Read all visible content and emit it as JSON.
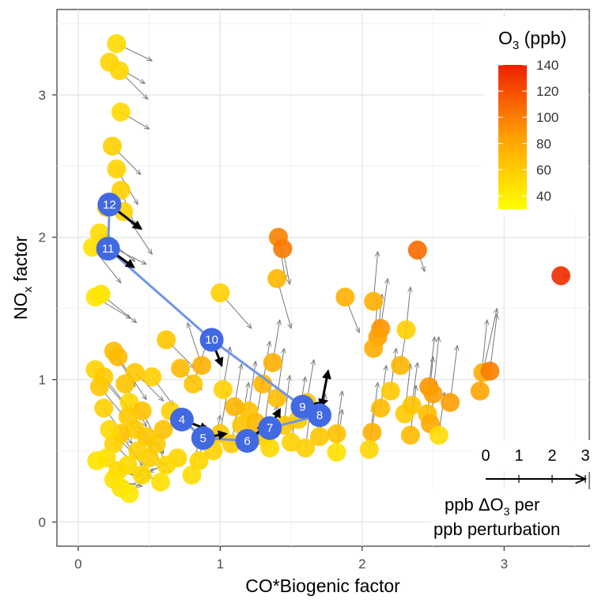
{
  "chart_data": {
    "type": "scatter",
    "xlabel": "CO*Biogenic factor",
    "ylabel": "NOx factor",
    "ylabel_main": "NO",
    "ylabel_sub": "x",
    "ylabel_tail": " factor",
    "xlim": [
      -0.15,
      3.6
    ],
    "ylim": [
      -0.17,
      3.6
    ],
    "x_ticks": [
      0,
      1,
      2,
      3
    ],
    "y_ticks": [
      0,
      1,
      2,
      3
    ],
    "x_tick_labels": [
      "0",
      "1",
      "2",
      "3"
    ],
    "y_tick_labels": [
      "0",
      "1",
      "2",
      "3"
    ],
    "grid": true,
    "legend": {
      "position": "top-right",
      "title": "O3 (ppb)",
      "title_main": "O",
      "title_sub": "3",
      "title_tail": " (ppb)",
      "range": [
        30,
        140
      ],
      "ticks": [
        140,
        120,
        100,
        80,
        60,
        40
      ],
      "tick_labels": [
        "140",
        "120",
        "100",
        "80",
        "60",
        "40"
      ],
      "colors": {
        "low": "#ffff00",
        "mid": "#ffa000",
        "high": "#f02000"
      }
    },
    "vector_scale": {
      "ticks": [
        "0",
        "1",
        "2",
        "3"
      ],
      "label_line1": "ppb ΔO3 per",
      "label_line1_a": "ppb  ΔO",
      "label_line1_sub": "3",
      "label_line1_b": " per",
      "label_line2": "ppb perturbation"
    },
    "marker_colors": {
      "path": "#4169e1",
      "path_line": "#6f95e6",
      "background_arrow": "#777777",
      "path_arrow": "#000000"
    },
    "points": [
      {
        "x": 0.27,
        "y": 3.36,
        "o3": 52,
        "dx": 0.25,
        "dy": -0.12
      },
      {
        "x": 0.22,
        "y": 3.23,
        "o3": 55,
        "dx": 0.25,
        "dy": -0.15
      },
      {
        "x": 0.29,
        "y": 3.17,
        "o3": 54,
        "dx": 0.2,
        "dy": -0.2
      },
      {
        "x": 0.3,
        "y": 2.88,
        "o3": 52,
        "dx": 0.2,
        "dy": -0.12
      },
      {
        "x": 0.24,
        "y": 2.64,
        "o3": 58,
        "dx": 0.2,
        "dy": -0.2
      },
      {
        "x": 0.27,
        "y": 2.48,
        "o3": 55,
        "dx": 0.15,
        "dy": -0.25
      },
      {
        "x": 0.3,
        "y": 2.33,
        "o3": 57,
        "dx": 0.1,
        "dy": -0.25
      },
      {
        "x": 0.2,
        "y": 2.21,
        "o3": 60,
        "dx": 0.25,
        "dy": -0.15
      },
      {
        "x": 0.32,
        "y": 2.18,
        "o3": 55,
        "dx": 0.2,
        "dy": -0.3
      },
      {
        "x": 0.15,
        "y": 2.03,
        "o3": 50,
        "dx": 0.25,
        "dy": -0.2
      },
      {
        "x": 0.18,
        "y": 1.96,
        "o3": 52,
        "dx": 0.3,
        "dy": -0.15
      },
      {
        "x": 0.1,
        "y": 1.93,
        "o3": 48,
        "dx": 0.2,
        "dy": -0.25
      },
      {
        "x": 0.16,
        "y": 1.6,
        "o3": 47,
        "dx": 0.25,
        "dy": -0.2
      },
      {
        "x": 0.12,
        "y": 1.58,
        "o3": 45,
        "dx": 0.25,
        "dy": -0.15
      },
      {
        "x": 1.41,
        "y": 2.0,
        "o3": 98,
        "dx": 0.05,
        "dy": -0.3
      },
      {
        "x": 1.44,
        "y": 1.92,
        "o3": 102,
        "dx": 0.05,
        "dy": -0.25
      },
      {
        "x": 1.4,
        "y": 1.71,
        "o3": 72,
        "dx": 0.1,
        "dy": -0.35
      },
      {
        "x": 1.0,
        "y": 1.61,
        "o3": 58,
        "dx": 0.22,
        "dy": -0.25
      },
      {
        "x": 1.88,
        "y": 1.58,
        "o3": 76,
        "dx": 0.1,
        "dy": -0.25
      },
      {
        "x": 2.39,
        "y": 1.91,
        "o3": 108,
        "dx": 0.05,
        "dy": -0.15
      },
      {
        "x": 3.4,
        "y": 1.73,
        "o3": 135,
        "dx": 0.05,
        "dy": 0.0
      },
      {
        "x": 2.08,
        "y": 1.55,
        "o3": 76,
        "dx": 0.03,
        "dy": 0.35
      },
      {
        "x": 2.13,
        "y": 1.36,
        "o3": 90,
        "dx": 0.05,
        "dy": 0.35
      },
      {
        "x": 2.11,
        "y": 1.3,
        "o3": 86,
        "dx": 0.03,
        "dy": 0.3
      },
      {
        "x": 2.31,
        "y": 1.35,
        "o3": 58,
        "dx": 0.03,
        "dy": 0.3
      },
      {
        "x": 2.08,
        "y": 1.22,
        "o3": 78,
        "dx": 0.03,
        "dy": 0.35
      },
      {
        "x": 2.27,
        "y": 1.1,
        "o3": 72,
        "dx": 0.05,
        "dy": 0.3
      },
      {
        "x": 2.85,
        "y": 1.05,
        "o3": 78,
        "dx": 0.1,
        "dy": 0.45
      },
      {
        "x": 2.9,
        "y": 1.06,
        "o3": 100,
        "dx": 0.05,
        "dy": 0.4
      },
      {
        "x": 2.83,
        "y": 0.92,
        "o3": 82,
        "dx": 0.05,
        "dy": 0.5
      },
      {
        "x": 2.47,
        "y": 0.95,
        "o3": 90,
        "dx": 0.04,
        "dy": 0.35
      },
      {
        "x": 2.5,
        "y": 0.9,
        "o3": 86,
        "dx": 0.04,
        "dy": 0.4
      },
      {
        "x": 2.62,
        "y": 0.84,
        "o3": 86,
        "dx": 0.05,
        "dy": 0.4
      },
      {
        "x": 2.46,
        "y": 0.76,
        "o3": 68,
        "dx": 0.04,
        "dy": 0.4
      },
      {
        "x": 2.3,
        "y": 0.76,
        "o3": 60,
        "dx": 0.04,
        "dy": 0.35
      },
      {
        "x": 2.35,
        "y": 0.82,
        "o3": 64,
        "dx": 0.04,
        "dy": 0.3
      },
      {
        "x": 2.48,
        "y": 0.69,
        "o3": 80,
        "dx": 0.04,
        "dy": 0.3
      },
      {
        "x": 2.34,
        "y": 0.61,
        "o3": 70,
        "dx": 0.04,
        "dy": 0.35
      },
      {
        "x": 2.54,
        "y": 0.61,
        "o3": 50,
        "dx": 0.04,
        "dy": 0.3
      },
      {
        "x": 2.07,
        "y": 0.63,
        "o3": 76,
        "dx": 0.04,
        "dy": 0.35
      },
      {
        "x": 2.05,
        "y": 0.51,
        "o3": 54,
        "dx": 0.03,
        "dy": 0.3
      },
      {
        "x": 2.13,
        "y": 0.8,
        "o3": 70,
        "dx": 0.04,
        "dy": 0.3
      },
      {
        "x": 2.2,
        "y": 0.92,
        "o3": 62,
        "dx": 0.04,
        "dy": 0.3
      },
      {
        "x": 1.82,
        "y": 0.62,
        "o3": 66,
        "dx": 0.04,
        "dy": 0.3
      },
      {
        "x": 1.82,
        "y": 0.49,
        "o3": 48,
        "dx": 0.04,
        "dy": 0.3
      },
      {
        "x": 1.61,
        "y": 0.84,
        "o3": 64,
        "dx": 0.05,
        "dy": 0.3
      },
      {
        "x": 1.37,
        "y": 1.12,
        "o3": 76,
        "dx": 0.05,
        "dy": 0.3
      },
      {
        "x": 1.3,
        "y": 0.97,
        "o3": 72,
        "dx": 0.05,
        "dy": 0.3
      },
      {
        "x": 1.4,
        "y": 0.87,
        "o3": 68,
        "dx": 0.05,
        "dy": 0.35
      },
      {
        "x": 1.45,
        "y": 0.68,
        "o3": 64,
        "dx": 0.04,
        "dy": 0.35
      },
      {
        "x": 1.5,
        "y": 0.56,
        "o3": 56,
        "dx": 0.05,
        "dy": 0.3
      },
      {
        "x": 1.6,
        "y": 0.52,
        "o3": 58,
        "dx": 0.04,
        "dy": 0.3
      },
      {
        "x": 1.7,
        "y": 0.6,
        "o3": 62,
        "dx": 0.04,
        "dy": 0.3
      },
      {
        "x": 1.3,
        "y": 0.6,
        "o3": 60,
        "dx": 0.05,
        "dy": 0.35
      },
      {
        "x": 1.2,
        "y": 0.78,
        "o3": 66,
        "dx": 0.05,
        "dy": 0.35
      },
      {
        "x": 1.1,
        "y": 0.81,
        "o3": 72,
        "dx": 0.05,
        "dy": 0.3
      },
      {
        "x": 1.02,
        "y": 0.93,
        "o3": 56,
        "dx": 0.05,
        "dy": 0.3
      },
      {
        "x": 0.87,
        "y": 1.1,
        "o3": 76,
        "dx": -0.1,
        "dy": 0.3
      },
      {
        "x": 0.81,
        "y": 0.97,
        "o3": 64,
        "dx": 0.1,
        "dy": 0.3
      },
      {
        "x": 0.72,
        "y": 1.08,
        "o3": 70,
        "dx": 0.15,
        "dy": -0.15
      },
      {
        "x": 0.62,
        "y": 1.28,
        "o3": 62,
        "dx": 0.2,
        "dy": -0.2
      },
      {
        "x": 0.52,
        "y": 1.02,
        "o3": 58,
        "dx": 0.15,
        "dy": -0.2
      },
      {
        "x": 0.4,
        "y": 1.05,
        "o3": 62,
        "dx": 0.2,
        "dy": -0.2
      },
      {
        "x": 0.25,
        "y": 1.2,
        "o3": 68,
        "dx": 0.15,
        "dy": -0.25
      },
      {
        "x": 0.28,
        "y": 1.16,
        "o3": 70,
        "dx": 0.2,
        "dy": -0.3
      },
      {
        "x": 0.12,
        "y": 1.07,
        "o3": 56,
        "dx": 0.25,
        "dy": -0.3
      },
      {
        "x": 0.18,
        "y": 1.02,
        "o3": 60,
        "dx": 0.2,
        "dy": -0.25
      },
      {
        "x": 0.15,
        "y": 0.95,
        "o3": 62,
        "dx": 0.25,
        "dy": -0.3
      },
      {
        "x": 0.33,
        "y": 0.97,
        "o3": 64,
        "dx": 0.15,
        "dy": -0.3
      },
      {
        "x": 0.18,
        "y": 0.8,
        "o3": 58,
        "dx": 0.2,
        "dy": -0.25
      },
      {
        "x": 0.36,
        "y": 0.84,
        "o3": 54,
        "dx": 0.15,
        "dy": -0.35
      },
      {
        "x": 0.45,
        "y": 0.78,
        "o3": 66,
        "dx": 0.15,
        "dy": -0.3
      },
      {
        "x": 0.4,
        "y": 0.65,
        "o3": 60,
        "dx": 0.2,
        "dy": -0.25
      },
      {
        "x": 0.3,
        "y": 0.62,
        "o3": 64,
        "dx": 0.2,
        "dy": -0.3
      },
      {
        "x": 0.25,
        "y": 0.55,
        "o3": 56,
        "dx": 0.2,
        "dy": -0.2
      },
      {
        "x": 0.2,
        "y": 0.45,
        "o3": 48,
        "dx": 0.25,
        "dy": -0.12
      },
      {
        "x": 0.13,
        "y": 0.43,
        "o3": 46,
        "dx": 0.3,
        "dy": -0.12
      },
      {
        "x": 0.35,
        "y": 0.4,
        "o3": 50,
        "dx": 0.15,
        "dy": -0.1
      },
      {
        "x": 0.28,
        "y": 0.36,
        "o3": 52,
        "dx": 0.2,
        "dy": -0.05
      },
      {
        "x": 0.25,
        "y": 0.3,
        "o3": 48,
        "dx": 0.2,
        "dy": -0.05
      },
      {
        "x": 0.3,
        "y": 0.24,
        "o3": 46,
        "dx": 0.15,
        "dy": 0.05
      },
      {
        "x": 0.36,
        "y": 0.2,
        "o3": 44,
        "dx": 0.1,
        "dy": 0.1
      },
      {
        "x": 0.45,
        "y": 0.33,
        "o3": 52,
        "dx": 0.0,
        "dy": 0.1
      },
      {
        "x": 0.5,
        "y": 0.45,
        "o3": 58,
        "dx": -0.05,
        "dy": -0.1
      },
      {
        "x": 0.55,
        "y": 0.55,
        "o3": 60,
        "dx": 0.1,
        "dy": -0.2
      },
      {
        "x": 0.62,
        "y": 0.4,
        "o3": 52,
        "dx": -0.15,
        "dy": -0.05
      },
      {
        "x": 0.7,
        "y": 0.45,
        "o3": 54,
        "dx": -0.2,
        "dy": -0.1
      },
      {
        "x": 0.8,
        "y": 0.33,
        "o3": 50,
        "dx": 0.05,
        "dy": 0.25
      },
      {
        "x": 0.85,
        "y": 0.43,
        "o3": 54,
        "dx": 0.05,
        "dy": 0.25
      },
      {
        "x": 0.95,
        "y": 0.5,
        "o3": 56,
        "dx": 0.05,
        "dy": 0.25
      },
      {
        "x": 1.0,
        "y": 0.62,
        "o3": 62,
        "dx": 0.05,
        "dy": 0.3
      },
      {
        "x": 1.08,
        "y": 0.55,
        "o3": 60,
        "dx": 0.05,
        "dy": 0.3
      },
      {
        "x": 1.15,
        "y": 0.68,
        "o3": 64,
        "dx": 0.05,
        "dy": 0.3
      },
      {
        "x": 1.25,
        "y": 0.7,
        "o3": 70,
        "dx": 0.05,
        "dy": 0.3
      },
      {
        "x": 1.35,
        "y": 0.52,
        "o3": 52,
        "dx": 0.05,
        "dy": 0.3
      },
      {
        "x": 1.55,
        "y": 0.72,
        "o3": 62,
        "dx": 0.05,
        "dy": 0.3
      },
      {
        "x": 0.6,
        "y": 0.65,
        "o3": 66,
        "dx": 0.2,
        "dy": 0.1
      },
      {
        "x": 0.65,
        "y": 0.78,
        "o3": 58,
        "dx": 0.15,
        "dy": -0.05
      },
      {
        "x": 0.48,
        "y": 0.6,
        "o3": 62,
        "dx": 0.1,
        "dy": -0.2
      },
      {
        "x": 0.35,
        "y": 0.74,
        "o3": 60,
        "dx": 0.2,
        "dy": -0.2
      },
      {
        "x": 0.22,
        "y": 0.65,
        "o3": 52,
        "dx": 0.2,
        "dy": -0.2
      },
      {
        "x": 0.42,
        "y": 0.5,
        "o3": 56,
        "dx": 0.2,
        "dy": -0.15
      },
      {
        "x": 0.58,
        "y": 0.28,
        "o3": 48,
        "dx": -0.1,
        "dy": 0.05
      }
    ],
    "path_points": [
      {
        "label": "4",
        "x": 0.73,
        "y": 0.72,
        "dx": 0.18,
        "dy": -0.07
      },
      {
        "label": "5",
        "x": 0.88,
        "y": 0.59,
        "dx": 0.16,
        "dy": 0.03
      },
      {
        "label": "6",
        "x": 1.19,
        "y": 0.57,
        "dx": 0.13,
        "dy": 0.1
      },
      {
        "label": "7",
        "x": 1.35,
        "y": 0.66,
        "dx": 0.07,
        "dy": 0.13
      },
      {
        "label": "9",
        "x": 1.58,
        "y": 0.81,
        "dx": 0.17,
        "dy": 0.04
      },
      {
        "label": "8",
        "x": 1.7,
        "y": 0.75,
        "dx": 0.06,
        "dy": 0.31
      },
      {
        "label": "10",
        "x": 0.94,
        "y": 1.28,
        "dx": 0.07,
        "dy": -0.18
      },
      {
        "label": "11",
        "x": 0.21,
        "y": 1.92,
        "dx": 0.18,
        "dy": -0.13
      },
      {
        "label": "12",
        "x": 0.22,
        "y": 2.23,
        "dx": 0.22,
        "dy": -0.17
      }
    ],
    "path_order": [
      "12",
      "11",
      "10",
      "9",
      "8",
      "7",
      "6",
      "5",
      "4"
    ]
  }
}
